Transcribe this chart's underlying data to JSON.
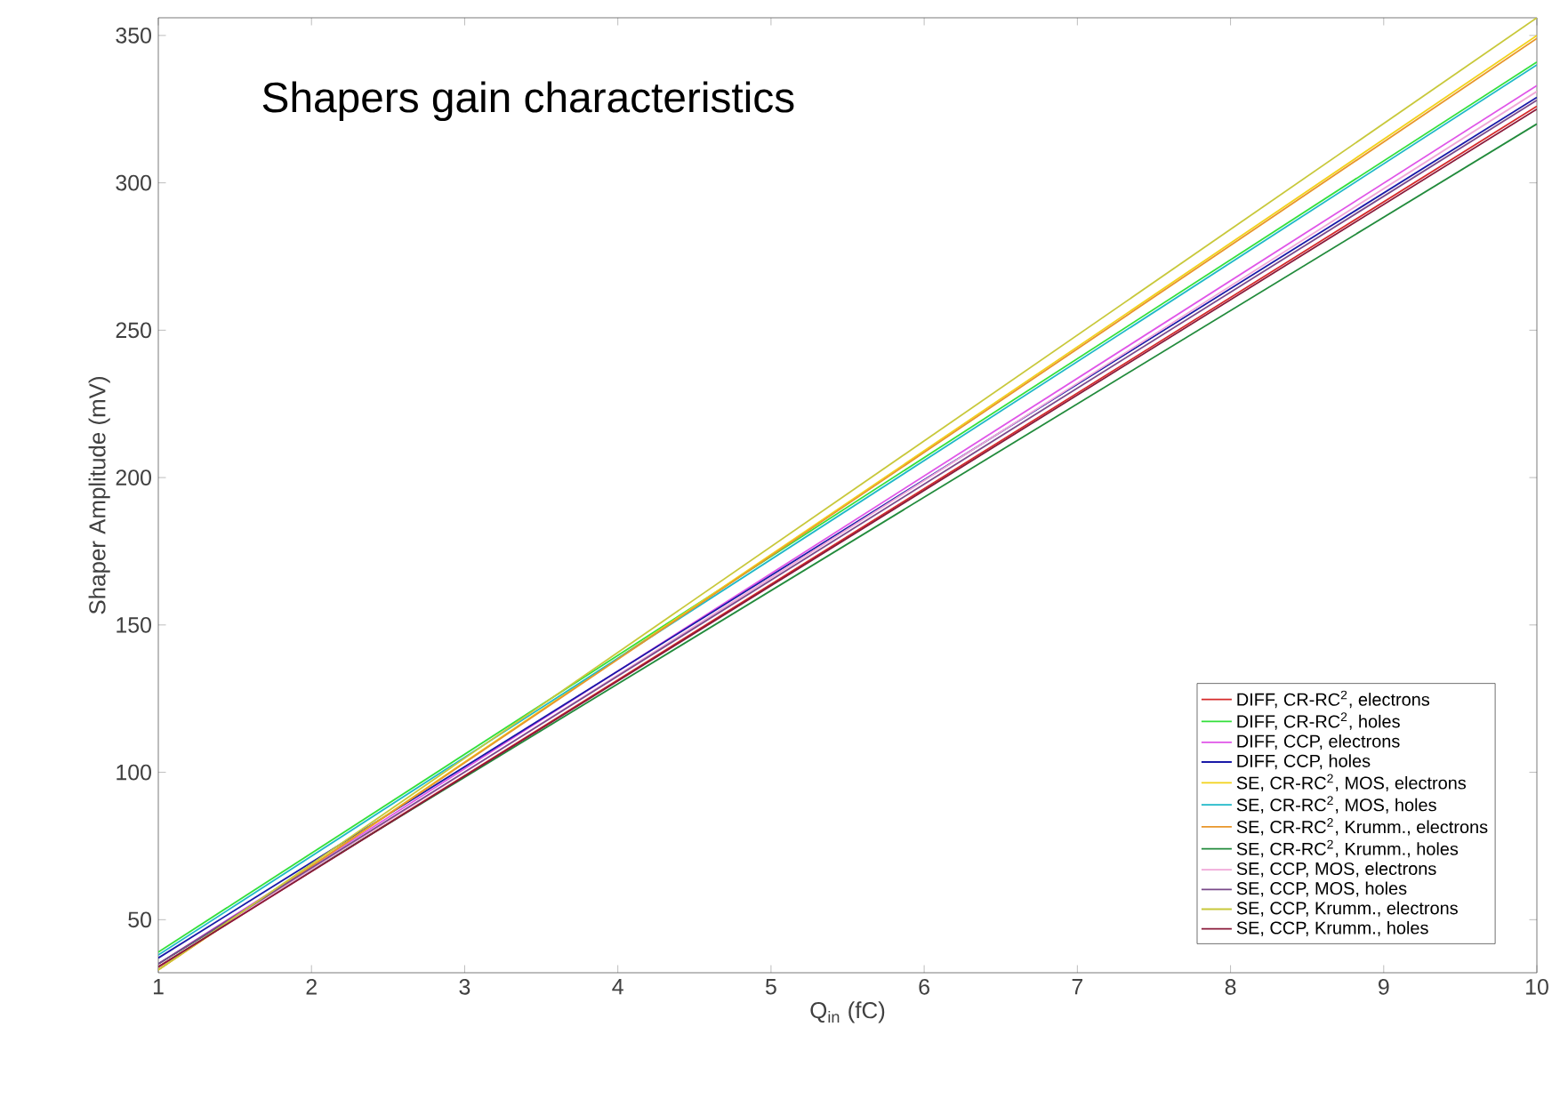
{
  "chart_data": {
    "type": "line",
    "xlabel": "Q$_{in}$ (fC)",
    "ylabel": "Shaper Amplitude (mV)",
    "annotations": [
      "Shapers gain characteristics"
    ],
    "x": [
      1,
      10
    ],
    "xlim": [
      1,
      10
    ],
    "ylim": [
      32,
      356
    ],
    "xticks": [
      1,
      2,
      3,
      4,
      5,
      6,
      7,
      8,
      9,
      10
    ],
    "yticks": [
      50,
      100,
      150,
      200,
      250,
      300,
      350
    ],
    "legend": "bottom right",
    "grid": false,
    "marker": "none",
    "line_style": "solid",
    "series": [
      {
        "name": "DIFF, CR-RC$^{2}$, electrons",
        "color": "#d62a2a",
        "values": [
          34,
          326
        ]
      },
      {
        "name": "DIFF, CR-RC$^{2}$, holes",
        "color": "#33e03a",
        "values": [
          39,
          341
        ]
      },
      {
        "name": "DIFF, CCP, electrons",
        "color": "#e055e8",
        "values": [
          35,
          333
        ]
      },
      {
        "name": "DIFF, CCP, holes",
        "color": "#1a1aa8",
        "values": [
          37,
          329
        ]
      },
      {
        "name": "SE, CR-RC$^{2}$, MOS, electrons",
        "color": "#f2d21a",
        "values": [
          33,
          350
        ]
      },
      {
        "name": "SE, CR-RC$^{2}$, MOS, holes",
        "color": "#1fb8c8",
        "values": [
          38,
          340
        ]
      },
      {
        "name": "SE, CR-RC$^{2}$, Krumm., electrons",
        "color": "#e8962a",
        "values": [
          33,
          349
        ]
      },
      {
        "name": "SE, CR-RC$^{2}$, Krumm., holes",
        "color": "#228b3c",
        "values": [
          35,
          320
        ]
      },
      {
        "name": "SE, CCP, MOS, electrons",
        "color": "#f0a8d8",
        "values": [
          34,
          331
        ]
      },
      {
        "name": "SE, CCP, MOS, holes",
        "color": "#7a4a8a",
        "values": [
          35,
          328
        ]
      },
      {
        "name": "SE, CCP, Krumm., electrons",
        "color": "#c8c83a",
        "values": [
          33,
          356
        ]
      },
      {
        "name": "SE, CCP, Krumm., holes",
        "color": "#8a1a3a",
        "values": [
          34,
          325
        ]
      }
    ]
  }
}
